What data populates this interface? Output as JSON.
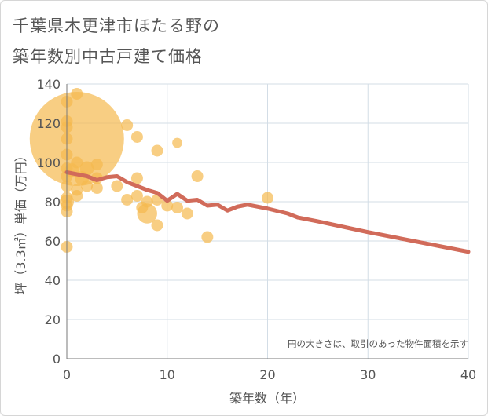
{
  "title_line1": "千葉県木更津市ほたる野の",
  "title_line2": "築年数別中古戸建て価格",
  "chart_data": {
    "type": "scatter",
    "xlabel": "築年数（年）",
    "ylabel": "坪（3.3㎡）単価（万円）",
    "xlim": [
      0,
      40
    ],
    "ylim": [
      0,
      140
    ],
    "x_ticks": [
      0,
      10,
      20,
      30,
      40
    ],
    "y_ticks": [
      0,
      20,
      40,
      60,
      80,
      100,
      120,
      140
    ],
    "grid": true,
    "note": "円の大きさは、取引のあった物件面積を示す",
    "bubble_color": "#f5b94e",
    "line_color": "#d16b5a",
    "bubbles": [
      {
        "x": 0,
        "y": 131,
        "s": 1
      },
      {
        "x": 0,
        "y": 121,
        "s": 1
      },
      {
        "x": 0,
        "y": 118,
        "s": 1
      },
      {
        "x": 0,
        "y": 112,
        "s": 1
      },
      {
        "x": 0,
        "y": 104,
        "s": 1
      },
      {
        "x": 0,
        "y": 97,
        "s": 1
      },
      {
        "x": 0,
        "y": 93,
        "s": 1
      },
      {
        "x": 0,
        "y": 88,
        "s": 1
      },
      {
        "x": 0,
        "y": 82,
        "s": 1
      },
      {
        "x": 0,
        "y": 78,
        "s": 1
      },
      {
        "x": 0,
        "y": 75,
        "s": 1
      },
      {
        "x": 0,
        "y": 57,
        "s": 1
      },
      {
        "x": 0,
        "y": 80,
        "s": 1.2
      },
      {
        "x": 0.5,
        "y": 96,
        "s": 1.2
      },
      {
        "x": 1,
        "y": 112,
        "s": 8
      },
      {
        "x": 1,
        "y": 135,
        "s": 1
      },
      {
        "x": 1,
        "y": 100,
        "s": 1
      },
      {
        "x": 1,
        "y": 86,
        "s": 1
      },
      {
        "x": 1,
        "y": 83,
        "s": 1
      },
      {
        "x": 1.5,
        "y": 92,
        "s": 1.2
      },
      {
        "x": 2,
        "y": 97,
        "s": 1.2
      },
      {
        "x": 2,
        "y": 88,
        "s": 1
      },
      {
        "x": 3,
        "y": 99,
        "s": 1
      },
      {
        "x": 3,
        "y": 92,
        "s": 1
      },
      {
        "x": 3,
        "y": 87,
        "s": 1
      },
      {
        "x": 5,
        "y": 88,
        "s": 1
      },
      {
        "x": 6,
        "y": 119,
        "s": 1
      },
      {
        "x": 6,
        "y": 81,
        "s": 1
      },
      {
        "x": 7,
        "y": 113,
        "s": 1
      },
      {
        "x": 7,
        "y": 92,
        "s": 1
      },
      {
        "x": 7,
        "y": 83,
        "s": 1
      },
      {
        "x": 7.5,
        "y": 77,
        "s": 1
      },
      {
        "x": 8,
        "y": 74,
        "s": 1.7
      },
      {
        "x": 8,
        "y": 80,
        "s": 1
      },
      {
        "x": 9,
        "y": 106,
        "s": 1
      },
      {
        "x": 9,
        "y": 81,
        "s": 1
      },
      {
        "x": 9,
        "y": 68,
        "s": 1
      },
      {
        "x": 10,
        "y": 78,
        "s": 1
      },
      {
        "x": 11,
        "y": 110,
        "s": 0.85
      },
      {
        "x": 11,
        "y": 77,
        "s": 1
      },
      {
        "x": 12,
        "y": 74,
        "s": 1
      },
      {
        "x": 13,
        "y": 93,
        "s": 1
      },
      {
        "x": 14,
        "y": 62,
        "s": 1
      },
      {
        "x": 20,
        "y": 82,
        "s": 1
      }
    ],
    "trend": {
      "x": [
        0,
        2,
        3,
        4,
        5,
        6,
        7,
        8,
        9,
        10,
        11,
        12,
        13,
        14,
        15,
        16,
        17,
        18,
        19,
        20,
        22,
        23,
        25,
        30,
        35,
        40
      ],
      "y": [
        95,
        93,
        91,
        92.5,
        93,
        90,
        88,
        86,
        84.5,
        80.5,
        84,
        80.5,
        81,
        78,
        78.5,
        75.5,
        77.5,
        78.5,
        77.5,
        76.5,
        74,
        72,
        70,
        64.5,
        59.5,
        54.5
      ]
    }
  }
}
